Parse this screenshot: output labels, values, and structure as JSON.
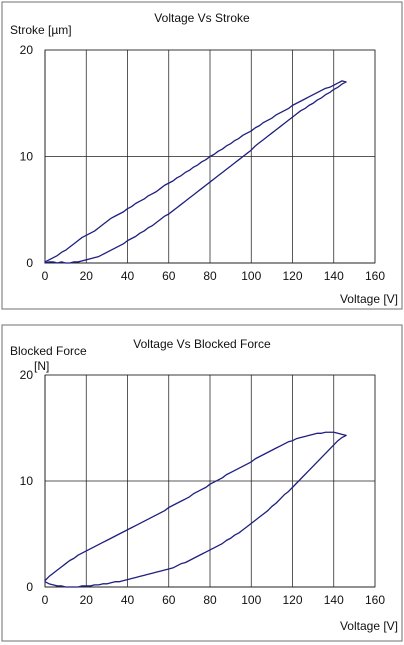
{
  "chart_data": [
    {
      "type": "line",
      "title": "Voltage Vs Stroke",
      "xlabel": "Voltage [V]",
      "ylabel": "Stroke [µm]",
      "ylabel_line2": "",
      "xlim": [
        0,
        160
      ],
      "ylim": [
        0,
        20
      ],
      "x_ticks": [
        0,
        20,
        40,
        60,
        80,
        100,
        120,
        140,
        160
      ],
      "y_ticks": [
        0,
        10,
        20
      ],
      "grid": true,
      "legend": "none",
      "series": [
        {
          "color": "#1f1f80",
          "x": [
            0,
            2,
            4,
            6,
            8,
            10,
            12,
            14,
            16,
            18,
            20,
            22,
            24,
            26,
            28,
            30,
            32,
            34,
            36,
            38,
            40,
            42,
            44,
            46,
            48,
            50,
            52,
            54,
            56,
            58,
            60,
            62,
            64,
            66,
            68,
            70,
            72,
            74,
            76,
            78,
            80,
            82,
            84,
            86,
            88,
            90,
            92,
            94,
            96,
            98,
            100,
            102,
            104,
            106,
            108,
            110,
            112,
            114,
            116,
            118,
            120,
            122,
            124,
            126,
            128,
            130,
            132,
            134,
            136,
            138,
            140,
            142,
            144,
            146,
            144,
            142,
            140,
            138,
            136,
            134,
            132,
            130,
            128,
            126,
            124,
            122,
            120,
            118,
            116,
            114,
            112,
            110,
            108,
            106,
            104,
            102,
            100,
            98,
            96,
            94,
            92,
            90,
            88,
            86,
            84,
            82,
            80,
            78,
            76,
            74,
            72,
            70,
            68,
            66,
            64,
            62,
            60,
            58,
            56,
            54,
            52,
            50,
            48,
            46,
            44,
            42,
            40,
            38,
            36,
            34,
            32,
            30,
            28,
            26,
            24,
            22,
            20,
            18,
            16,
            14,
            12,
            10,
            8,
            6,
            4,
            2,
            0
          ],
          "y": [
            0.1,
            0.3,
            0.5,
            0.7,
            1.0,
            1.2,
            1.5,
            1.8,
            2.1,
            2.4,
            2.6,
            2.8,
            3.0,
            3.3,
            3.6,
            3.9,
            4.2,
            4.4,
            4.6,
            4.8,
            5.1,
            5.3,
            5.6,
            5.8,
            6.0,
            6.3,
            6.5,
            6.7,
            7.0,
            7.3,
            7.5,
            7.7,
            8.0,
            8.2,
            8.5,
            8.7,
            9.0,
            9.2,
            9.5,
            9.7,
            10.0,
            10.2,
            10.5,
            10.7,
            11.0,
            11.2,
            11.5,
            11.7,
            12.0,
            12.2,
            12.4,
            12.7,
            12.9,
            13.2,
            13.4,
            13.6,
            13.9,
            14.1,
            14.3,
            14.5,
            14.8,
            15.0,
            15.2,
            15.4,
            15.6,
            15.8,
            16.0,
            16.2,
            16.4,
            16.5,
            16.7,
            16.9,
            17.1,
            17.0,
            16.8,
            16.5,
            16.3,
            16.0,
            15.8,
            15.5,
            15.3,
            15.0,
            14.8,
            14.5,
            14.3,
            14.0,
            13.7,
            13.4,
            13.1,
            12.8,
            12.5,
            12.2,
            11.9,
            11.6,
            11.3,
            11.0,
            10.6,
            10.3,
            10.0,
            9.7,
            9.4,
            9.1,
            8.8,
            8.5,
            8.2,
            7.9,
            7.6,
            7.3,
            7.0,
            6.7,
            6.4,
            6.1,
            5.8,
            5.5,
            5.2,
            4.9,
            4.6,
            4.4,
            4.1,
            3.8,
            3.5,
            3.3,
            3.0,
            2.8,
            2.5,
            2.3,
            2.1,
            1.8,
            1.6,
            1.4,
            1.2,
            1.0,
            0.8,
            0.6,
            0.5,
            0.4,
            0.3,
            0.2,
            0.1,
            0.1,
            0.0,
            0.0,
            0.1,
            0.0,
            0.1,
            0.1,
            0.0
          ]
        }
      ]
    },
    {
      "type": "line",
      "title": "Voltage Vs Blocked Force",
      "xlabel": "Voltage [V]",
      "ylabel": "Blocked Force",
      "ylabel_line2": "[N]",
      "xlim": [
        0,
        160
      ],
      "ylim": [
        0,
        20
      ],
      "x_ticks": [
        0,
        20,
        40,
        60,
        80,
        100,
        120,
        140,
        160
      ],
      "y_ticks": [
        0,
        10,
        20
      ],
      "grid": true,
      "legend": "none",
      "series": [
        {
          "color": "#1f1f80",
          "x": [
            0,
            2,
            4,
            6,
            8,
            10,
            12,
            14,
            16,
            18,
            20,
            22,
            24,
            26,
            28,
            30,
            32,
            34,
            36,
            38,
            40,
            42,
            44,
            46,
            48,
            50,
            52,
            54,
            56,
            58,
            60,
            62,
            64,
            66,
            68,
            70,
            72,
            74,
            76,
            78,
            80,
            82,
            84,
            86,
            88,
            90,
            92,
            94,
            96,
            98,
            100,
            102,
            104,
            106,
            108,
            110,
            112,
            114,
            116,
            118,
            120,
            122,
            124,
            126,
            128,
            130,
            132,
            134,
            136,
            138,
            140,
            142,
            144,
            146,
            144,
            142,
            140,
            138,
            136,
            134,
            132,
            130,
            128,
            126,
            124,
            122,
            120,
            118,
            116,
            114,
            112,
            110,
            108,
            106,
            104,
            102,
            100,
            98,
            96,
            94,
            92,
            90,
            88,
            86,
            84,
            82,
            80,
            78,
            76,
            74,
            72,
            70,
            68,
            66,
            64,
            62,
            60,
            58,
            56,
            54,
            52,
            50,
            48,
            46,
            44,
            42,
            40,
            38,
            36,
            34,
            32,
            30,
            28,
            26,
            24,
            22,
            20,
            18,
            16,
            14,
            12,
            10,
            8,
            6,
            4,
            2,
            0
          ],
          "y": [
            0.6,
            1.0,
            1.3,
            1.6,
            1.9,
            2.2,
            2.5,
            2.7,
            3.0,
            3.2,
            3.4,
            3.6,
            3.8,
            4.0,
            4.2,
            4.4,
            4.6,
            4.8,
            5.0,
            5.2,
            5.4,
            5.6,
            5.8,
            6.0,
            6.2,
            6.4,
            6.6,
            6.8,
            7.0,
            7.2,
            7.5,
            7.7,
            7.9,
            8.1,
            8.3,
            8.5,
            8.8,
            9.0,
            9.2,
            9.4,
            9.7,
            9.9,
            10.1,
            10.3,
            10.6,
            10.8,
            11.0,
            11.2,
            11.4,
            11.6,
            11.8,
            12.1,
            12.3,
            12.5,
            12.7,
            12.9,
            13.1,
            13.3,
            13.5,
            13.7,
            13.8,
            14.0,
            14.1,
            14.2,
            14.3,
            14.4,
            14.5,
            14.5,
            14.6,
            14.6,
            14.6,
            14.5,
            14.4,
            14.3,
            14.1,
            13.8,
            13.4,
            13.0,
            12.6,
            12.2,
            11.8,
            11.4,
            11.0,
            10.6,
            10.2,
            9.8,
            9.4,
            9.0,
            8.7,
            8.3,
            7.9,
            7.6,
            7.2,
            6.9,
            6.6,
            6.3,
            6.0,
            5.7,
            5.4,
            5.1,
            4.9,
            4.6,
            4.4,
            4.1,
            3.9,
            3.7,
            3.5,
            3.3,
            3.1,
            2.9,
            2.7,
            2.5,
            2.3,
            2.2,
            2.0,
            1.8,
            1.7,
            1.6,
            1.5,
            1.4,
            1.3,
            1.2,
            1.1,
            1.0,
            0.9,
            0.8,
            0.7,
            0.6,
            0.5,
            0.5,
            0.4,
            0.3,
            0.3,
            0.2,
            0.2,
            0.1,
            0.1,
            0.1,
            0.0,
            0.0,
            0.0,
            0.0,
            0.1,
            0.1,
            0.2,
            0.3,
            0.5
          ]
        }
      ]
    }
  ]
}
